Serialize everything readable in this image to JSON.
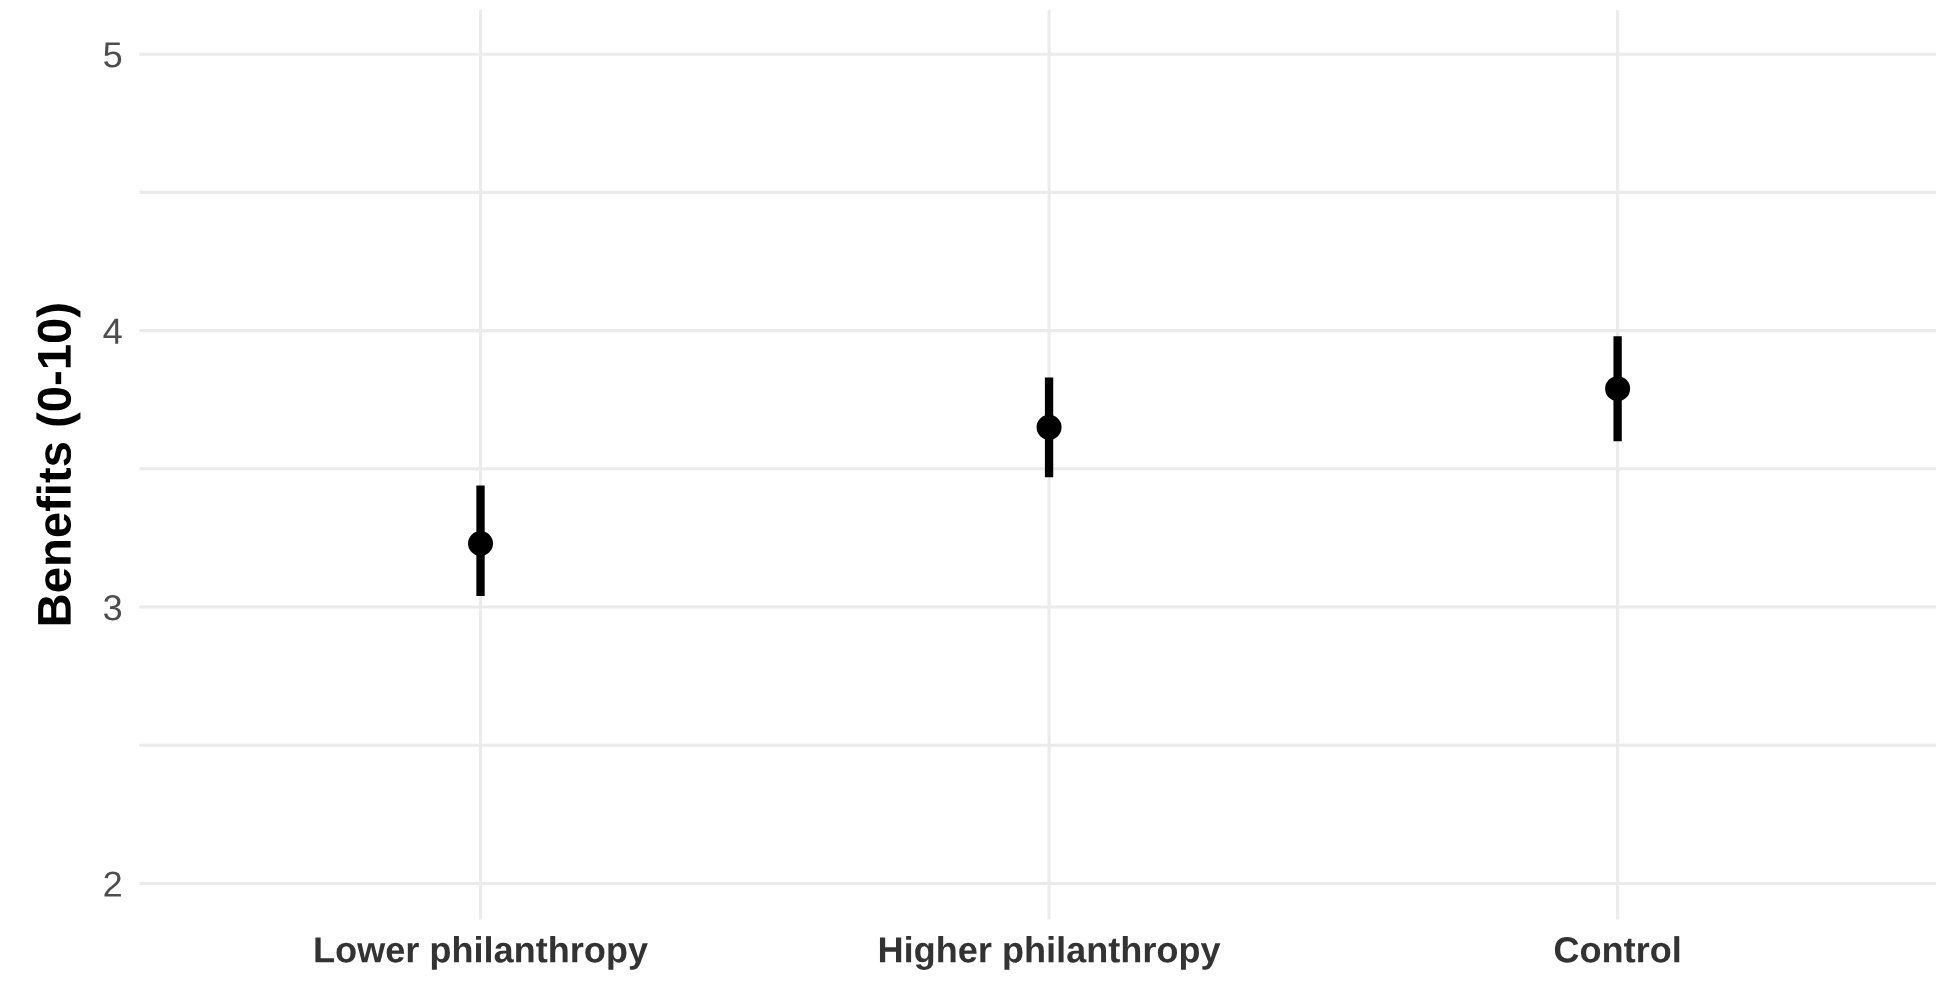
{
  "chart_data": {
    "type": "scatter",
    "ylabel": "Benefits (0-10)",
    "categories": [
      "Lower philanthropy",
      "Higher philanthropy",
      "Control"
    ],
    "values": [
      3.23,
      3.65,
      3.79
    ],
    "errors": [
      [
        3.04,
        3.44
      ],
      [
        3.47,
        3.83
      ],
      [
        3.6,
        3.98
      ]
    ],
    "color": "#000000",
    "ylim": [
      1.87,
      5.16
    ],
    "yticks": [
      2,
      {
        "value": 2.5,
        "label": null
      },
      3,
      {
        "value": 3.5,
        "label": null
      },
      4,
      {
        "value": 4.5,
        "label": null
      },
      5
    ],
    "grid": true,
    "marker": "circle"
  }
}
